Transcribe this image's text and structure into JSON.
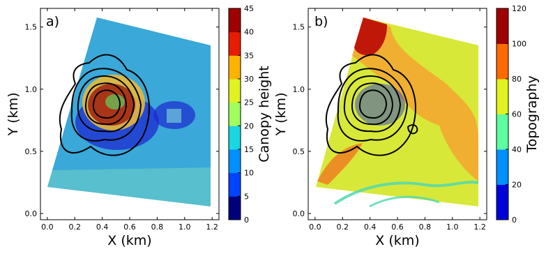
{
  "chart_data": [
    {
      "type": "heatmap",
      "panel_label": "a)",
      "xlabel": "X (km)",
      "ylabel": "Y (km)",
      "xlim": [
        -0.05,
        1.25
      ],
      "ylim": [
        -0.05,
        1.65
      ],
      "x_ticks": [
        "0.0",
        "0.2",
        "0.4",
        "0.6",
        "0.8",
        "1.0",
        "1.2"
      ],
      "y_ticks": [
        "0.0",
        "0.5",
        "1.0",
        "1.5"
      ],
      "colorbar": {
        "label": "Canopy height",
        "min": 0,
        "max": 45,
        "ticks": [
          "0",
          "5",
          "10",
          "15",
          "20",
          "25",
          "30",
          "35",
          "40",
          "45"
        ]
      },
      "contours": "black contour lines centred near (0.42 km, 0.85 km)",
      "colors": {
        "field_dominant": "#3aa8d8",
        "clearing": "#1c2ad0",
        "stand_center": "#a02010"
      }
    },
    {
      "type": "heatmap",
      "panel_label": "b)",
      "xlabel": "X (km)",
      "ylabel": "Y (km)",
      "xlim": [
        -0.05,
        1.25
      ],
      "ylim": [
        -0.05,
        1.65
      ],
      "x_ticks": [
        "0.0",
        "0.2",
        "0.4",
        "0.6",
        "0.8",
        "1.0",
        "1.2"
      ],
      "y_ticks": [
        "0.0",
        "0.5",
        "1.0",
        "1.5"
      ],
      "colorbar": {
        "label": "Topography",
        "min": 0,
        "max": 120,
        "ticks": [
          "0",
          "20",
          "40",
          "60",
          "80",
          "100",
          "120"
        ]
      },
      "contours": "black contour lines centred near (0.42 km, 0.85 km)",
      "colors": {
        "field_dominant": "#d8e838",
        "high_ground": "#c01808",
        "channels": "#50d8b0"
      }
    }
  ]
}
